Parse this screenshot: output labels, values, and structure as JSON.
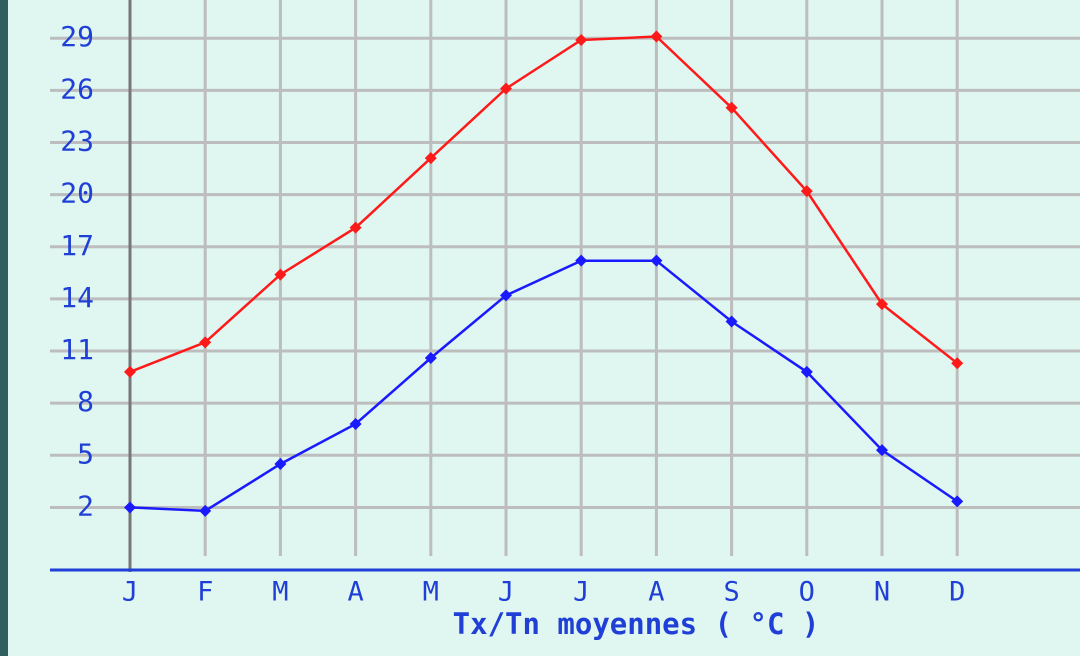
{
  "chart_data": {
    "type": "line",
    "x_label": "Tx/Tn moyennes ( °C )",
    "categories": [
      "J",
      "F",
      "M",
      "A",
      "M",
      "J",
      "J",
      "A",
      "S",
      "O",
      "N",
      "D"
    ],
    "series": [
      {
        "name": "Tx",
        "color": "#ff1a1a",
        "values": [
          9.8,
          11.5,
          15.4,
          18.1,
          22.1,
          26.1,
          28.9,
          29.1,
          25.0,
          20.2,
          13.7,
          10.3
        ]
      },
      {
        "name": "Tn",
        "color": "#1a1aff",
        "values": [
          2.0,
          1.8,
          4.5,
          6.8,
          10.6,
          14.2,
          16.2,
          16.2,
          12.7,
          9.8,
          5.3,
          2.35
        ]
      }
    ],
    "ylim": [
      -1.6,
      31.2
    ],
    "yticks": [
      2,
      5,
      8,
      11,
      14,
      17,
      20,
      23,
      26,
      29
    ],
    "grid": true
  }
}
